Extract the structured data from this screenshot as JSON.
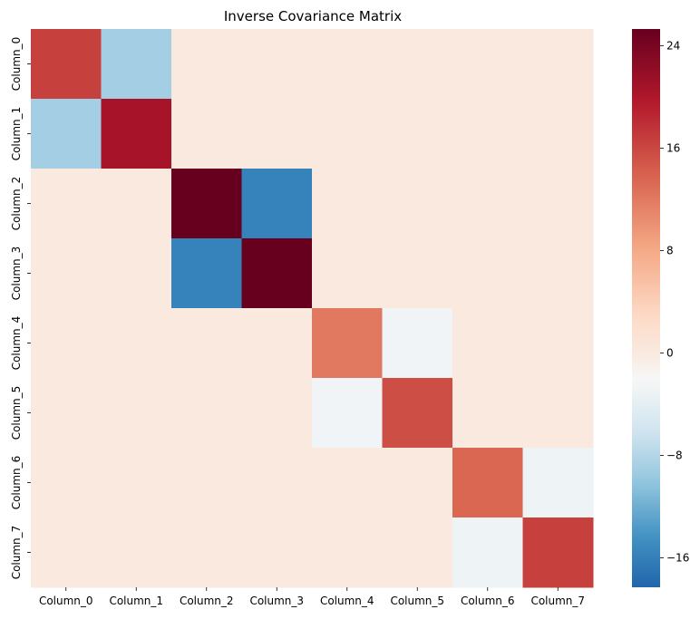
{
  "chart_data": {
    "type": "heatmap",
    "title": "Inverse Covariance Matrix",
    "xlabel": "",
    "ylabel": "",
    "rows": [
      "Column_0",
      "Column_1",
      "Column_2",
      "Column_3",
      "Column_4",
      "Column_5",
      "Column_6",
      "Column_7"
    ],
    "columns": [
      "Column_0",
      "Column_1",
      "Column_2",
      "Column_3",
      "Column_4",
      "Column_5",
      "Column_6",
      "Column_7"
    ],
    "values": [
      [
        16.5,
        -9.0,
        0,
        0,
        0,
        0,
        0,
        0
      ],
      [
        -9.0,
        20.5,
        0,
        0.1,
        0,
        0,
        0,
        0
      ],
      [
        0,
        0,
        25.3,
        -15.8,
        0,
        0,
        0,
        0
      ],
      [
        0,
        0.1,
        -15.8,
        25.3,
        0,
        0,
        0,
        0
      ],
      [
        0,
        0,
        0,
        0,
        12.0,
        -2.7,
        0,
        0
      ],
      [
        0,
        0,
        0,
        0,
        -2.7,
        15.5,
        0,
        0
      ],
      [
        0,
        0,
        0,
        0,
        0,
        0,
        13.5,
        -3.0
      ],
      [
        0,
        0,
        0,
        0,
        0,
        0,
        -3.0,
        16.5
      ]
    ],
    "colorbar": {
      "min": -18.3,
      "max": 25.3,
      "ticks": [
        -16,
        -8,
        0,
        8,
        16,
        24
      ],
      "tick_labels": [
        "−16",
        "−8",
        "0",
        "8",
        "16",
        "24"
      ],
      "colormap": "RdBu_r"
    },
    "colormap_stops": [
      "#2166ac",
      "#4393c3",
      "#92c5de",
      "#d1e5f0",
      "#f7f7f7",
      "#fddbc7",
      "#f4a582",
      "#d6604d",
      "#b2182b",
      "#67001f"
    ]
  }
}
